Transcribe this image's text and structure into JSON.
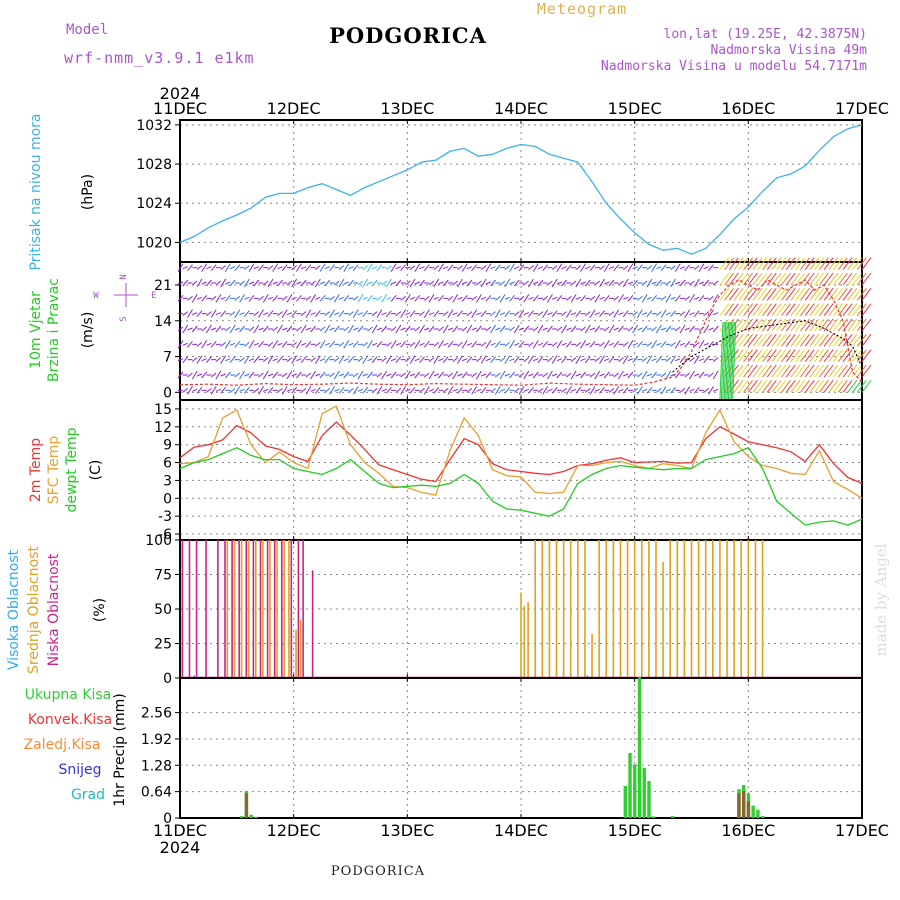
{
  "header": {
    "model_label": "Model",
    "model_name": "wrf-nmm_v3.9.1 e1km",
    "station": "PODGORICA",
    "title": "Meteogram",
    "coords": "lon,lat (19.25E, 42.3875N)",
    "elevation": "Nadmorska Visina 49m",
    "model_elevation": "Nadmorska Visina u modelu 54.7171m",
    "footer_station": "PODGORICA",
    "watermark": "made by Angel"
  },
  "time_axis": {
    "year": "2024",
    "labels": [
      "11DEC",
      "12DEC",
      "13DEC",
      "14DEC",
      "15DEC",
      "16DEC",
      "17DEC"
    ],
    "range_hours": [
      0,
      144
    ]
  },
  "colors": {
    "pressure": "#3ab3e6",
    "wind_label": "#22cc22",
    "temp2m": "#ee3333",
    "sfc_temp": "#e8a030",
    "dewpt": "#22cc22",
    "cloud_high": "#33aaee",
    "cloud_mid": "#e0a020",
    "cloud_low": "#cc2288",
    "precip_total": "#33cc33",
    "precip_conv": "#ee3333",
    "precip_grid": "#ff8833",
    "snow": "#3333dd",
    "hail": "#22bbbb",
    "header_purple": "#aa55cc",
    "header_orange": "#e0b050"
  },
  "chart_data": [
    {
      "type": "line",
      "id": "pressure",
      "ylabel": "Pritisak na nivou mora",
      "unit": "(hPa)",
      "ylim": [
        1018,
        1032.5
      ],
      "yticks": [
        1020,
        1024,
        1028,
        1032
      ],
      "grid": true,
      "series": [
        {
          "x": [
            0,
            3,
            6,
            9,
            12,
            15,
            18,
            21,
            24,
            27,
            30,
            33,
            36,
            39,
            42,
            45,
            48,
            51,
            54,
            57,
            60,
            63,
            66,
            69,
            72,
            75,
            78,
            81,
            84,
            87,
            90,
            93,
            96,
            99,
            102,
            105,
            108,
            111,
            114,
            117,
            120,
            123,
            126,
            129,
            132,
            135,
            138,
            141,
            144
          ],
          "values": [
            1020.0,
            1020.6,
            1021.5,
            1022.2,
            1022.8,
            1023.5,
            1024.6,
            1025.0,
            1025.0,
            1025.6,
            1026.0,
            1025.4,
            1024.8,
            1025.6,
            1026.2,
            1026.8,
            1027.4,
            1028.2,
            1028.4,
            1029.3,
            1029.6,
            1028.8,
            1029.0,
            1029.6,
            1030.0,
            1029.8,
            1029.0,
            1028.6,
            1028.2,
            1026.2,
            1024.0,
            1022.4,
            1021.0,
            1019.8,
            1019.2,
            1019.4,
            1018.8,
            1019.4,
            1020.8,
            1022.4,
            1023.6,
            1025.2,
            1026.6,
            1027.0,
            1027.8,
            1029.4,
            1030.8,
            1031.6,
            1032.0
          ]
        }
      ]
    },
    {
      "type": "line",
      "id": "wind",
      "ylabel": "10m Vjetar",
      "ylabel2": "Brzina i Pravac",
      "unit": "(m/s)",
      "compass": [
        "N",
        "W",
        "E",
        "S"
      ],
      "ylim": [
        -1.5,
        25.5
      ],
      "yticks": [
        0,
        7,
        14,
        21
      ],
      "grid": true,
      "series": [
        {
          "x": [
            0,
            6,
            12,
            18,
            24,
            30,
            36,
            42,
            48,
            54,
            60,
            66,
            72,
            78,
            84,
            90,
            96,
            100,
            102,
            104,
            106,
            108,
            110,
            112,
            114,
            116,
            118,
            120,
            122,
            124,
            126,
            128,
            130,
            132,
            134,
            136,
            138,
            140,
            142,
            144
          ],
          "values": [
            1.5,
            1.6,
            1.4,
            1.7,
            1.5,
            1.6,
            1.8,
            1.6,
            1.5,
            1.7,
            1.6,
            1.5,
            1.4,
            1.8,
            1.6,
            1.5,
            1.4,
            2.0,
            2.5,
            3.0,
            5.0,
            8.0,
            12.0,
            16.0,
            19.0,
            21.0,
            22.0,
            21.0,
            20.0,
            22.0,
            21.0,
            20.0,
            21.0,
            22.0,
            20.0,
            21.0,
            18.0,
            14.0,
            4.0,
            2.0
          ]
        },
        {
          "x": [
            104,
            108,
            112,
            116,
            120,
            124,
            128,
            132,
            136,
            138,
            140,
            142,
            144
          ],
          "values": [
            4.0,
            7.0,
            9.0,
            11.0,
            12.5,
            13.0,
            13.5,
            14.0,
            12.5,
            11.5,
            10.5,
            9.0,
            5.0
          ]
        }
      ]
    },
    {
      "type": "line",
      "id": "temperature",
      "labels": [
        "2m Temp",
        "SFC Temp",
        "dewpt Temp"
      ],
      "unit": "(C)",
      "ylim": [
        -7,
        16.5
      ],
      "yticks": [
        -6,
        -3,
        0,
        3,
        6,
        9,
        12,
        15
      ],
      "grid": true,
      "x": [
        0,
        3,
        6,
        9,
        12,
        15,
        18,
        21,
        24,
        27,
        30,
        33,
        36,
        39,
        42,
        45,
        48,
        51,
        54,
        57,
        60,
        63,
        66,
        69,
        72,
        75,
        78,
        81,
        84,
        87,
        90,
        93,
        96,
        99,
        102,
        105,
        108,
        111,
        114,
        117,
        120,
        123,
        126,
        129,
        132,
        135,
        138,
        141,
        144
      ],
      "series": [
        {
          "name": "2m Temp",
          "values": [
            6.8,
            8.6,
            9.0,
            9.8,
            12.2,
            11.0,
            8.8,
            8.2,
            7.0,
            6.2,
            10.5,
            12.8,
            10.6,
            8.2,
            5.6,
            4.8,
            4.0,
            3.2,
            2.8,
            6.5,
            10.0,
            9.0,
            5.8,
            4.8,
            4.5,
            4.2,
            4.0,
            4.5,
            5.5,
            5.8,
            6.4,
            6.8,
            6.0,
            6.1,
            6.2,
            5.9,
            6.0,
            10.0,
            12.0,
            10.8,
            9.5,
            9.0,
            8.5,
            7.8,
            6.2,
            9.0,
            5.8,
            3.5,
            2.5
          ]
        },
        {
          "name": "SFC Temp",
          "values": [
            5.8,
            6.0,
            7.0,
            13.5,
            14.8,
            9.0,
            6.0,
            7.8,
            6.0,
            5.0,
            14.2,
            15.5,
            9.0,
            6.0,
            4.2,
            2.0,
            1.8,
            1.0,
            0.5,
            8.0,
            13.5,
            10.5,
            4.8,
            3.8,
            3.6,
            1.0,
            0.8,
            1.0,
            5.5,
            5.5,
            6.0,
            6.2,
            5.5,
            5.0,
            5.8,
            5.5,
            5.0,
            11.0,
            14.8,
            9.5,
            7.0,
            5.5,
            5.0,
            4.2,
            4.0,
            8.0,
            2.8,
            1.5,
            0.0
          ]
        },
        {
          "name": "dewpt Temp",
          "values": [
            5.0,
            6.0,
            6.5,
            7.5,
            8.5,
            7.2,
            6.5,
            6.5,
            5.0,
            4.5,
            4.0,
            5.0,
            6.5,
            4.5,
            2.5,
            1.8,
            2.0,
            2.2,
            2.0,
            2.5,
            4.0,
            2.5,
            -0.5,
            -1.8,
            -2.0,
            -2.5,
            -3.0,
            -1.8,
            2.5,
            4.0,
            5.0,
            5.5,
            5.2,
            5.0,
            4.8,
            5.0,
            5.0,
            6.5,
            7.0,
            7.5,
            8.5,
            5.0,
            -0.5,
            -2.5,
            -4.5,
            -4.0,
            -3.8,
            -4.5,
            -3.5
          ]
        }
      ]
    },
    {
      "type": "bar",
      "id": "clouds",
      "labels": [
        "Visoka Oblacnost",
        "Srednja Oblacnost",
        "Niska Oblacnost"
      ],
      "unit": "(%)",
      "ylim": [
        0,
        100
      ],
      "yticks": [
        0,
        25,
        50,
        75,
        100
      ],
      "grid": true,
      "series": [
        {
          "name": "Niska Oblacnost",
          "x": [
            0.5,
            2,
            3.5,
            5.5,
            8,
            9.5,
            11,
            12.5,
            14,
            15.5,
            17,
            18.5,
            20,
            21.5,
            23.5,
            25,
            26,
            28
          ],
          "values": [
            100,
            100,
            100,
            100,
            100,
            100,
            100,
            100,
            100,
            100,
            100,
            100,
            100,
            100,
            100,
            100,
            100,
            78
          ]
        },
        {
          "name": "Srednja Oblacnost",
          "x": [
            10,
            11.5,
            13,
            14.5,
            16,
            17.5,
            19,
            20.5,
            22,
            23,
            24.5,
            25.5,
            72,
            72.7,
            73.5,
            75,
            76.5,
            78,
            79.5,
            81,
            82.5,
            84,
            85.5,
            87,
            88.5,
            90,
            91.5,
            93,
            94.5,
            96,
            97.5,
            99,
            100.5,
            102,
            103.5,
            105,
            106.5,
            108,
            109.5,
            111,
            112.5,
            114,
            115.5,
            117,
            118.5,
            120,
            121.5,
            123
          ],
          "values": [
            100,
            100,
            100,
            100,
            100,
            100,
            100,
            100,
            100,
            100,
            35,
            42,
            62,
            52,
            55,
            100,
            100,
            100,
            100,
            100,
            100,
            100,
            100,
            32,
            100,
            100,
            100,
            100,
            100,
            100,
            100,
            100,
            100,
            84,
            100,
            100,
            100,
            100,
            100,
            100,
            100,
            100,
            100,
            100,
            100,
            100,
            100,
            100
          ]
        },
        {
          "name": "Visoka Oblacnost",
          "x": [
            3,
            86
          ],
          "values": [
            2,
            2
          ]
        }
      ]
    },
    {
      "type": "bar",
      "id": "precip",
      "labels": [
        "Ukupna Kisa",
        "Konvek.Kisa",
        "Zaledj.Kisa",
        "Snijeg",
        "Grad"
      ],
      "ylabel": "1hr Precip",
      "unit": "(mm)",
      "ylim": [
        0,
        3.4
      ],
      "yticks": [
        0,
        0.64,
        1.28,
        1.92,
        2.56
      ],
      "grid": true,
      "series": [
        {
          "name": "Ukupna Kisa",
          "x": [
            13,
            14,
            15,
            16,
            94,
            95,
            96,
            97,
            98,
            99,
            100,
            104,
            118,
            119,
            120,
            121,
            122,
            123
          ],
          "values": [
            0.05,
            0.66,
            0.08,
            0.03,
            0.78,
            1.58,
            1.3,
            3.42,
            1.22,
            0.9,
            0.04,
            0.05,
            0.7,
            0.8,
            0.6,
            0.3,
            0.2,
            0.05
          ]
        },
        {
          "name": "Konvek.Kisa",
          "x": [
            14,
            118,
            119,
            120
          ],
          "values": [
            0.6,
            0.6,
            0.65,
            0.4
          ]
        }
      ]
    }
  ]
}
